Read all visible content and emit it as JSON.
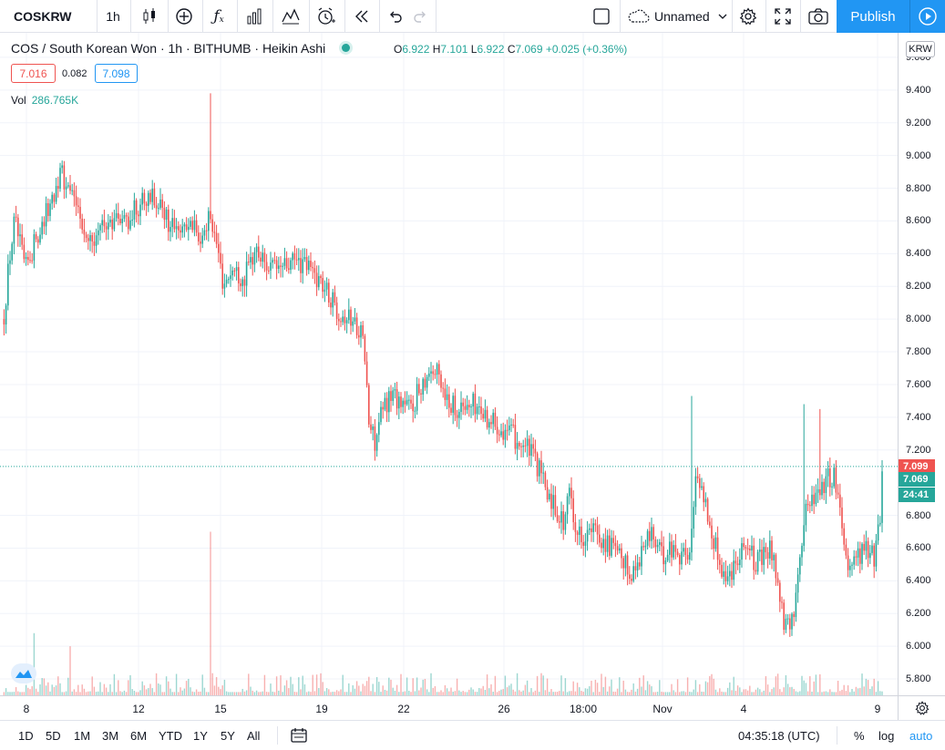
{
  "toolbar": {
    "symbol": "COSKRW",
    "interval": "1h",
    "layout_name": "Unnamed",
    "publish_label": "Publish"
  },
  "legend": {
    "title": "COS / South Korean Won · 1h · BITHUMB · Heikin Ashi",
    "o_label": "O",
    "o_value": "6.922",
    "h_label": "H",
    "h_value": "7.101",
    "l_label": "L",
    "l_value": "6.922",
    "c_label": "C",
    "c_value": "7.069",
    "change": "+0.025 (+0.36%)",
    "bid": "7.016",
    "spread": "0.082",
    "ask": "7.098",
    "vol_label": "Vol",
    "vol_value": "286.765K"
  },
  "price_axis": {
    "currency": "KRW",
    "ticks": [
      "9.600",
      "9.400",
      "9.200",
      "9.000",
      "8.800",
      "8.600",
      "8.400",
      "8.200",
      "8.000",
      "7.800",
      "7.600",
      "7.400",
      "7.200",
      "6.800",
      "6.600",
      "6.400",
      "6.200",
      "6.000",
      "5.800"
    ],
    "tag_last": "7.099",
    "tag_close": "7.069",
    "tag_timer": "24:41"
  },
  "time_axis": {
    "ticks": [
      "8",
      "12",
      "15",
      "19",
      "22",
      "26",
      "18:00",
      "Nov",
      "4",
      "9"
    ]
  },
  "bottom_bar": {
    "ranges": [
      "1D",
      "5D",
      "1M",
      "3M",
      "6M",
      "YTD",
      "1Y",
      "5Y",
      "All"
    ],
    "clock": "04:35:18 (UTC)",
    "percent": "%",
    "log": "log",
    "auto": "auto"
  },
  "colors": {
    "up": "#26a69a",
    "down": "#ef5350",
    "accent": "#2196f3",
    "grid": "#f0f3fa"
  },
  "chart_data": {
    "type": "candlestick",
    "style": "Heikin Ashi",
    "ylim": [
      5.7,
      9.75
    ],
    "grid": true,
    "anchors": [
      [
        0,
        8.2
      ],
      [
        4,
        8.0
      ],
      [
        10,
        8.35
      ],
      [
        16,
        8.6
      ],
      [
        22,
        8.45
      ],
      [
        28,
        8.3
      ],
      [
        40,
        8.5
      ],
      [
        55,
        8.7
      ],
      [
        66,
        8.9
      ],
      [
        78,
        8.75
      ],
      [
        88,
        8.62
      ],
      [
        100,
        8.5
      ],
      [
        112,
        8.55
      ],
      [
        125,
        8.62
      ],
      [
        140,
        8.6
      ],
      [
        152,
        8.7
      ],
      [
        165,
        8.78
      ],
      [
        178,
        8.65
      ],
      [
        190,
        8.55
      ],
      [
        205,
        8.6
      ],
      [
        218,
        8.5
      ],
      [
        230,
        8.65
      ],
      [
        238,
        8.45
      ],
      [
        245,
        8.22
      ],
      [
        255,
        8.3
      ],
      [
        268,
        8.25
      ],
      [
        280,
        8.42
      ],
      [
        290,
        8.35
      ],
      [
        300,
        8.3
      ],
      [
        312,
        8.32
      ],
      [
        325,
        8.35
      ],
      [
        338,
        8.32
      ],
      [
        350,
        8.25
      ],
      [
        360,
        8.15
      ],
      [
        372,
        8.05
      ],
      [
        385,
        8.0
      ],
      [
        395,
        7.95
      ],
      [
        400,
        7.8
      ],
      [
        405,
        7.35
      ],
      [
        412,
        7.25
      ],
      [
        420,
        7.45
      ],
      [
        430,
        7.55
      ],
      [
        440,
        7.5
      ],
      [
        452,
        7.45
      ],
      [
        462,
        7.6
      ],
      [
        472,
        7.7
      ],
      [
        482,
        7.65
      ],
      [
        492,
        7.5
      ],
      [
        505,
        7.45
      ],
      [
        520,
        7.48
      ],
      [
        535,
        7.4
      ],
      [
        548,
        7.35
      ],
      [
        560,
        7.3
      ],
      [
        570,
        7.25
      ],
      [
        580,
        7.2
      ],
      [
        590,
        7.1
      ],
      [
        600,
        6.95
      ],
      [
        610,
        6.85
      ],
      [
        618,
        6.75
      ],
      [
        626,
        6.95
      ],
      [
        632,
        6.7
      ],
      [
        640,
        6.68
      ],
      [
        652,
        6.7
      ],
      [
        662,
        6.65
      ],
      [
        672,
        6.6
      ],
      [
        684,
        6.5
      ],
      [
        695,
        6.45
      ],
      [
        705,
        6.6
      ],
      [
        715,
        6.7
      ],
      [
        725,
        6.55
      ],
      [
        738,
        6.6
      ],
      [
        750,
        6.55
      ],
      [
        758,
        6.6
      ],
      [
        764,
        7.05
      ],
      [
        770,
        7.0
      ],
      [
        778,
        6.75
      ],
      [
        788,
        6.55
      ],
      [
        798,
        6.4
      ],
      [
        808,
        6.55
      ],
      [
        818,
        6.65
      ],
      [
        828,
        6.5
      ],
      [
        838,
        6.55
      ],
      [
        848,
        6.6
      ],
      [
        855,
        6.3
      ],
      [
        862,
        6.1
      ],
      [
        870,
        6.15
      ],
      [
        878,
        6.6
      ],
      [
        885,
        6.85
      ],
      [
        895,
        6.95
      ],
      [
        905,
        7.0
      ],
      [
        915,
        7.05
      ],
      [
        922,
        6.85
      ],
      [
        930,
        6.5
      ],
      [
        940,
        6.55
      ],
      [
        950,
        6.6
      ],
      [
        960,
        6.55
      ],
      [
        965,
        6.75
      ],
      [
        970,
        7.069
      ]
    ],
    "spikes": [
      [
        232,
        9.38
      ],
      [
        758,
        7.53
      ],
      [
        882,
        7.48
      ],
      [
        900,
        7.45
      ]
    ],
    "volume_spikes": [
      [
        38,
        6.08
      ],
      [
        78,
        6.0
      ],
      [
        232,
        6.7
      ]
    ]
  }
}
